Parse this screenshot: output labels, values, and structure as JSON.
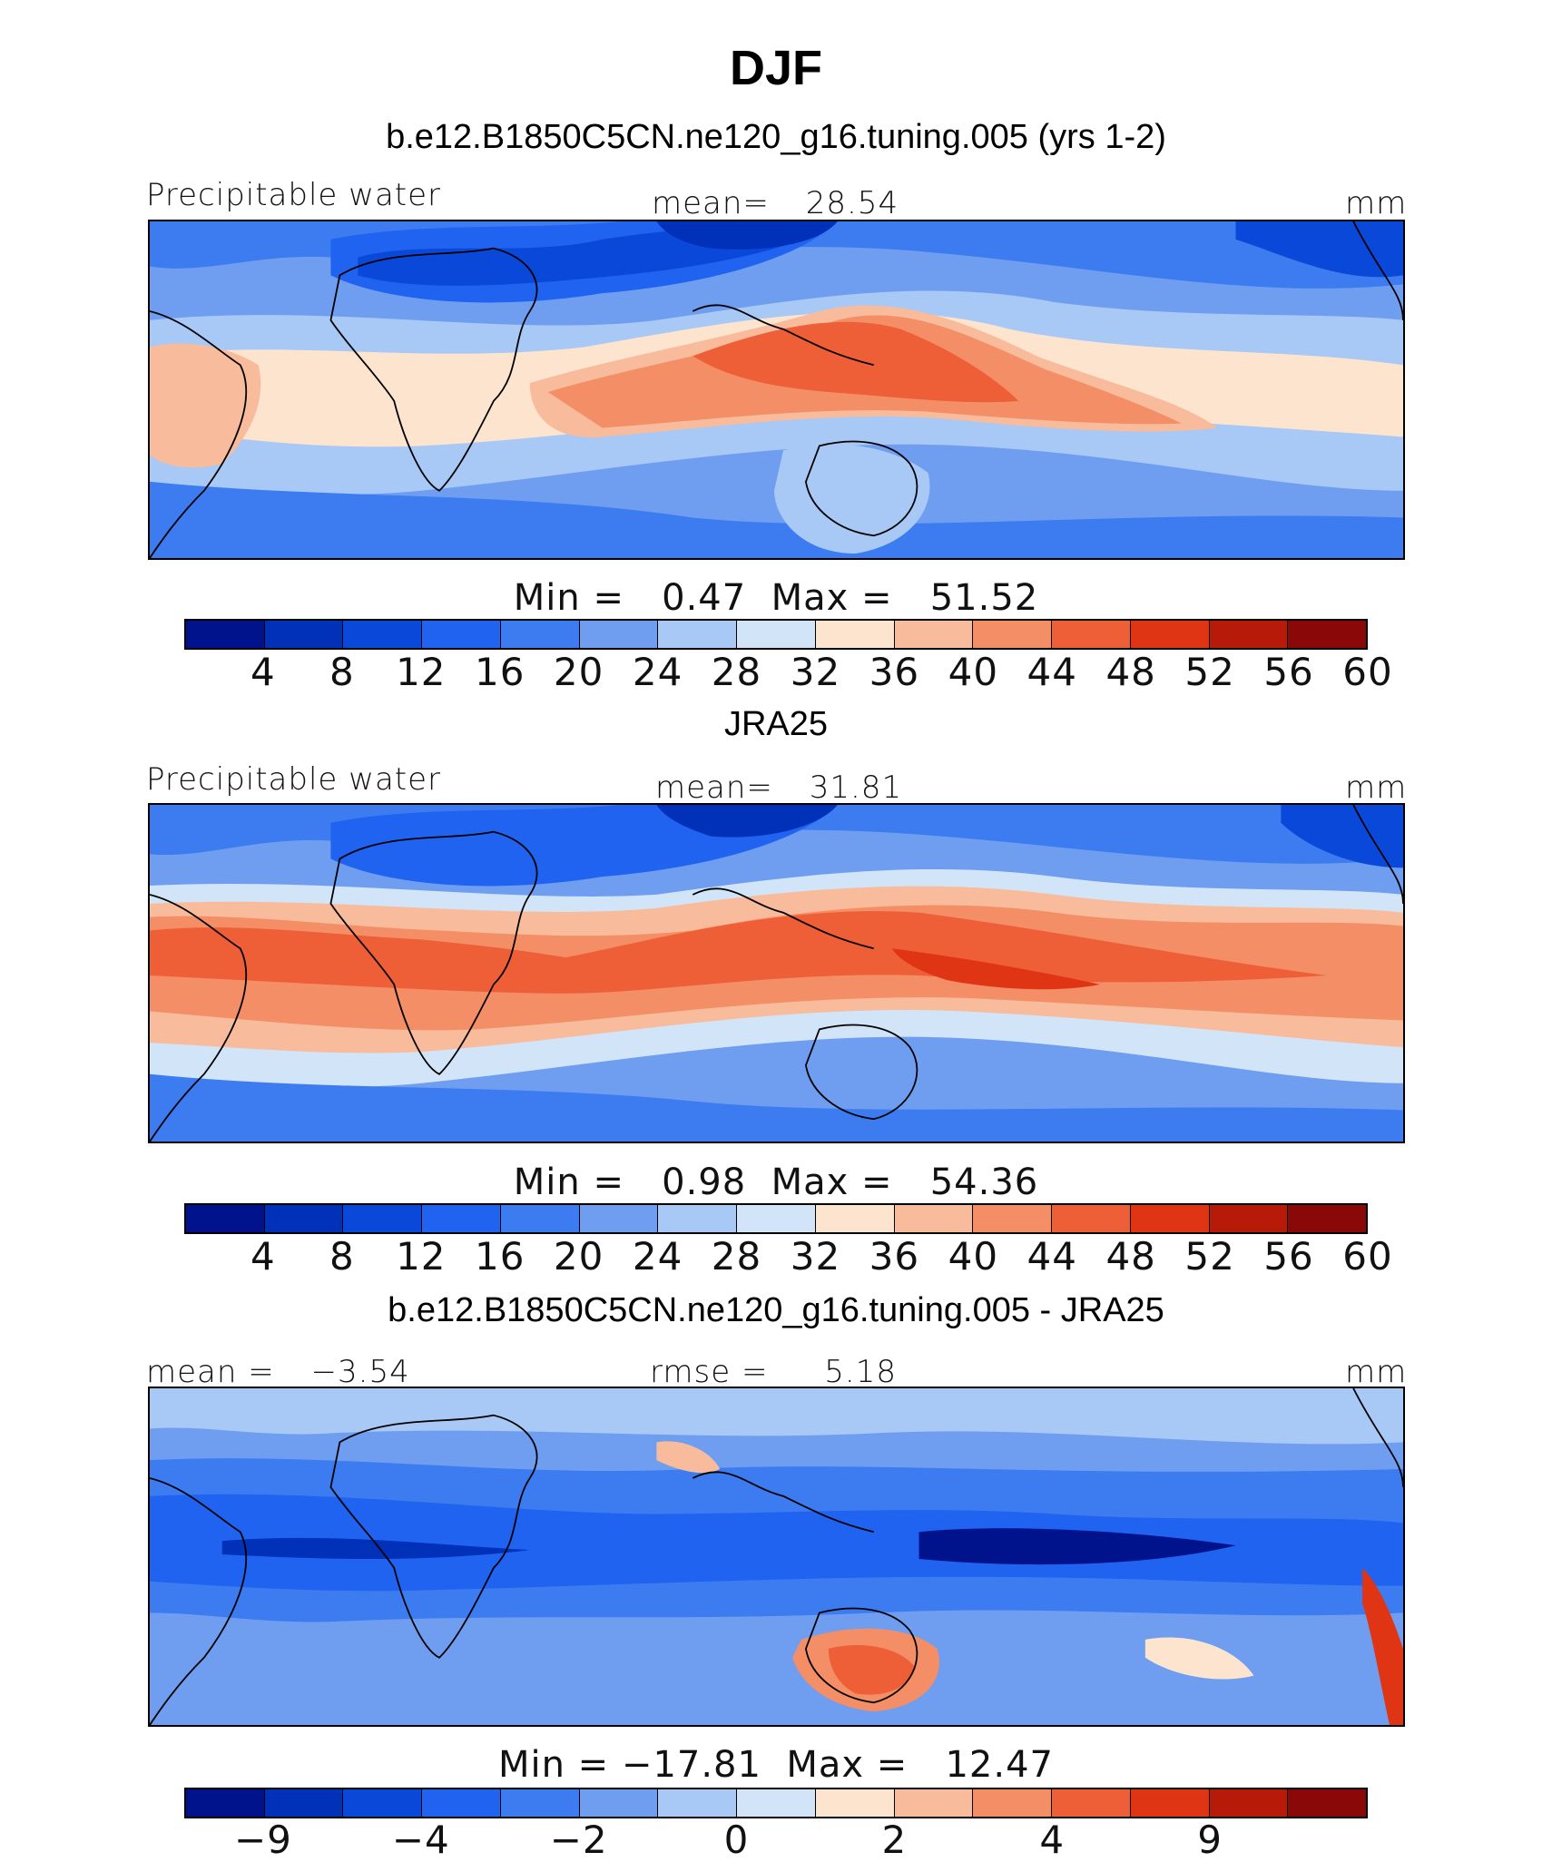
{
  "figure": {
    "season": "DJF"
  },
  "colors": {
    "precip_palette": [
      "#00138c",
      "#0031b8",
      "#0a48d9",
      "#1f63f0",
      "#3c7cf0",
      "#6f9ef0",
      "#a8c8f5",
      "#d2e4f8",
      "#fde4cf",
      "#f8bb9c",
      "#f48e66",
      "#ee5f38",
      "#df3514",
      "#b81a0a",
      "#8a0808"
    ],
    "diff_palette": [
      "#00138c",
      "#0031b8",
      "#0a48d9",
      "#1f63f0",
      "#3c7cf0",
      "#6f9ef0",
      "#a8c8f5",
      "#d2e4f8",
      "#fde4cf",
      "#f8bb9c",
      "#f48e66",
      "#ee5f38",
      "#df3514",
      "#b81a0a",
      "#8a0808"
    ],
    "coastline": "#000000"
  },
  "chart_data": [
    {
      "type": "heatmap",
      "title": "b.e12.B1850C5CN.ne120_g16.tuning.005 (yrs 1-2)",
      "variable": "Precipitable water",
      "stat_label": "mean=",
      "stat_value": "28.54",
      "units": "mm",
      "min_label": "Min =",
      "min_value": "0.47",
      "max_label": "Max =",
      "max_value": "51.52",
      "colorbar_ticks": [
        "4",
        "8",
        "12",
        "16",
        "20",
        "24",
        "28",
        "32",
        "36",
        "40",
        "44",
        "48",
        "52",
        "56",
        "60"
      ],
      "colorbar_levels": 15
    },
    {
      "type": "heatmap",
      "title": "JRA25",
      "variable": "Precipitable water",
      "stat_label": "mean=",
      "stat_value": "31.81",
      "units": "mm",
      "min_label": "Min =",
      "min_value": "0.98",
      "max_label": "Max =",
      "max_value": "54.36",
      "colorbar_ticks": [
        "4",
        "8",
        "12",
        "16",
        "20",
        "24",
        "28",
        "32",
        "36",
        "40",
        "44",
        "48",
        "52",
        "56",
        "60"
      ],
      "colorbar_levels": 15
    },
    {
      "type": "heatmap",
      "title": "b.e12.B1850C5CN.ne120_g16.tuning.005 - JRA25",
      "stat_label": "mean =",
      "stat_value": "−3.54",
      "stat2_label": "rmse =",
      "stat2_value": "5.18",
      "units": "mm",
      "min_label": "Min =",
      "min_value": "−17.81",
      "max_label": "Max =",
      "max_value": "12.47",
      "colorbar_ticks": [
        "−9",
        "−4",
        "−2",
        "0",
        "2",
        "4",
        "9"
      ],
      "colorbar_levels": 15
    }
  ]
}
